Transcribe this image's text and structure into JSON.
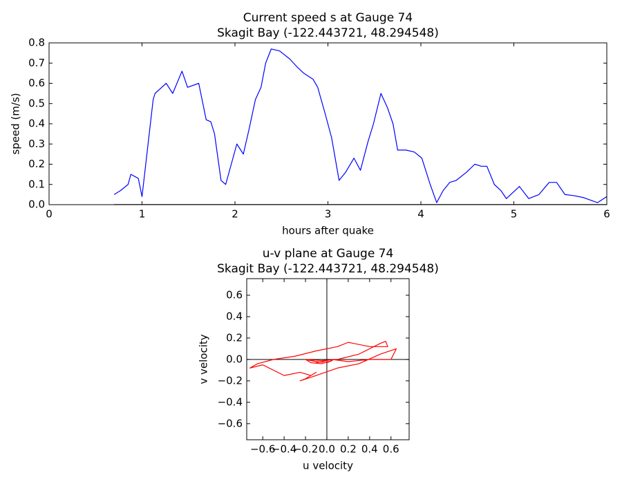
{
  "chart_data": [
    {
      "type": "line",
      "title": "Current speed s at Gauge 74",
      "subtitle": "Skagit Bay  (-122.443721, 48.294548)",
      "x_label": "hours after quake",
      "y_label": "speed (m/s)",
      "x": [
        0.7,
        0.77,
        0.85,
        0.88,
        0.92,
        0.96,
        1.0,
        1.04,
        1.09,
        1.12,
        1.14,
        1.26,
        1.33,
        1.43,
        1.49,
        1.61,
        1.69,
        1.74,
        1.78,
        1.85,
        1.9,
        1.96,
        2.02,
        2.09,
        2.15,
        2.22,
        2.28,
        2.33,
        2.39,
        2.48,
        2.59,
        2.67,
        2.74,
        2.84,
        2.89,
        2.97,
        3.04,
        3.12,
        3.19,
        3.28,
        3.35,
        3.43,
        3.49,
        3.57,
        3.64,
        3.7,
        3.75,
        3.84,
        3.93,
        4.01,
        4.1,
        4.17,
        4.24,
        4.31,
        4.38,
        4.49,
        4.58,
        4.65,
        4.71,
        4.79,
        4.86,
        4.92,
        4.99,
        5.06,
        5.16,
        5.27,
        5.38,
        5.46,
        5.55,
        5.64,
        5.75,
        5.84,
        5.9,
        6.0
      ],
      "series": [
        {
          "color": "#0000ff",
          "values": [
            0.05,
            0.07,
            0.1,
            0.15,
            0.14,
            0.13,
            0.04,
            0.2,
            0.4,
            0.52,
            0.55,
            0.6,
            0.55,
            0.66,
            0.58,
            0.6,
            0.42,
            0.41,
            0.35,
            0.12,
            0.1,
            0.2,
            0.3,
            0.25,
            0.37,
            0.52,
            0.58,
            0.7,
            0.77,
            0.76,
            0.72,
            0.68,
            0.65,
            0.62,
            0.58,
            0.45,
            0.33,
            0.12,
            0.16,
            0.23,
            0.17,
            0.31,
            0.4,
            0.55,
            0.48,
            0.4,
            0.27,
            0.27,
            0.26,
            0.23,
            0.1,
            0.01,
            0.07,
            0.11,
            0.12,
            0.16,
            0.2,
            0.19,
            0.19,
            0.1,
            0.07,
            0.03,
            0.06,
            0.09,
            0.03,
            0.05,
            0.11,
            0.11,
            0.05,
            0.045,
            0.035,
            0.02,
            0.01,
            0.04
          ]
        }
      ],
      "zero_line_color": "#000000",
      "xlim": [
        0,
        6
      ],
      "xticks": [
        0,
        1,
        2,
        3,
        4,
        5,
        6
      ],
      "ylim": [
        0,
        0.8
      ],
      "yticks": [
        {
          "value": 0,
          "label": "0.0"
        },
        0.1,
        0.2,
        0.3,
        0.4,
        0.5,
        0.6,
        0.7,
        0.8
      ]
    },
    {
      "type": "line",
      "title": "u-v plane at Gauge 74",
      "subtitle": "Skagit Bay  (-122.443721, 48.294548)",
      "x_label": "u velocity",
      "y_label": "v velocity",
      "x": [
        -0.2,
        -0.1,
        0.0,
        0.05,
        -0.05,
        -0.15,
        -0.2,
        -0.05,
        0.1,
        0.3,
        0.5,
        0.55,
        0.57,
        0.4,
        0.2,
        0.1,
        -0.1,
        -0.3,
        -0.5,
        -0.65,
        -0.72,
        -0.6,
        -0.4,
        -0.25,
        -0.15,
        -0.1,
        -0.2,
        -0.25,
        -0.1,
        0.1,
        0.3,
        0.5,
        0.65,
        0.6,
        0.4,
        0.2,
        0.05,
        -0.1
      ],
      "series": [
        {
          "color": "#ff0000",
          "values": [
            0.0,
            -0.02,
            -0.03,
            -0.01,
            -0.04,
            -0.03,
            0.0,
            -0.01,
            0.0,
            0.05,
            0.15,
            0.17,
            0.12,
            0.12,
            0.16,
            0.12,
            0.08,
            0.03,
            0.0,
            -0.04,
            -0.08,
            -0.05,
            -0.15,
            -0.12,
            -0.15,
            -0.12,
            -0.18,
            -0.2,
            -0.15,
            -0.08,
            -0.04,
            0.05,
            0.1,
            0.0,
            0.0,
            -0.02,
            0.0,
            -0.03
          ]
        }
      ],
      "zero_line_color": "#000000",
      "xlim": [
        -0.75,
        0.77
      ],
      "xticks": [
        {
          "value": -0.6,
          "label": "−0.6"
        },
        {
          "value": -0.4,
          "label": "−0.4"
        },
        {
          "value": -0.2,
          "label": "−0.2"
        },
        {
          "value": 0,
          "label": "0.0"
        },
        0.2,
        0.4,
        0.6
      ],
      "ylim": [
        -0.75,
        0.755
      ],
      "yticks": [
        {
          "value": -0.6,
          "label": "−0.6"
        },
        {
          "value": -0.4,
          "label": "−0.4"
        },
        {
          "value": -0.2,
          "label": "−0.2"
        },
        {
          "value": 0,
          "label": "0.0"
        },
        0.2,
        0.4,
        0.6
      ]
    }
  ]
}
